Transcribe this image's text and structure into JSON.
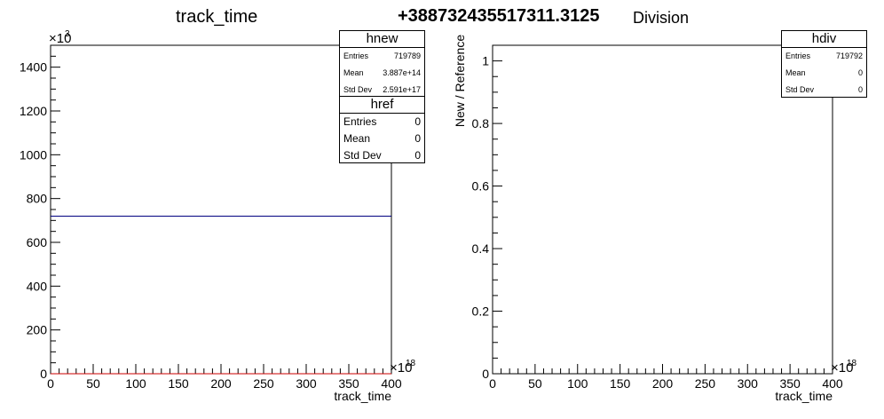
{
  "overlay_text": "+388732435517311.3125",
  "left_title": "track_time",
  "right_title": "Division",
  "stat_boxes": {
    "hnew": {
      "name": "hnew",
      "rows": [
        [
          "Entries",
          "719789"
        ],
        [
          "Mean",
          "3.887e+14"
        ],
        [
          "Std Dev",
          "2.591e+17"
        ]
      ]
    },
    "href": {
      "name": "href",
      "rows": [
        [
          "Entries",
          "0"
        ],
        [
          "Mean",
          "0"
        ],
        [
          "Std Dev",
          "0"
        ]
      ]
    },
    "hdiv": {
      "name": "hdiv",
      "rows": [
        [
          "Entries",
          "719792"
        ],
        [
          "Mean",
          "0"
        ],
        [
          "Std Dev",
          "0"
        ]
      ]
    }
  },
  "chart_data": [
    {
      "type": "line",
      "title": "track_time",
      "xlabel": "track_time",
      "ylabel": "",
      "x_exponent_label": "×10",
      "x_exponent": "18",
      "y_exponent_label": "×10",
      "y_exponent": "3",
      "xlim": [
        0,
        400
      ],
      "ylim": [
        0,
        1500
      ],
      "x_ticks": [
        "0",
        "50",
        "100",
        "150",
        "200",
        "250",
        "300",
        "350",
        "400"
      ],
      "y_ticks": [
        "0",
        "200",
        "400",
        "600",
        "800",
        "1000",
        "1200",
        "1400"
      ],
      "series": [
        {
          "name": "hnew",
          "color": "#000080",
          "x": [
            0,
            400
          ],
          "values": [
            719.789,
            719.789
          ]
        },
        {
          "name": "href",
          "color": "#cc0000",
          "x": [
            0,
            400
          ],
          "values": [
            0,
            0
          ]
        }
      ]
    },
    {
      "type": "line",
      "title": "Division",
      "xlabel": "track_time",
      "ylabel": "New / Reference",
      "x_exponent_label": "×10",
      "x_exponent": "18",
      "xlim": [
        0,
        400
      ],
      "ylim": [
        0,
        1.05
      ],
      "x_ticks": [
        "0",
        "50",
        "100",
        "150",
        "200",
        "250",
        "300",
        "350",
        "400"
      ],
      "y_ticks": [
        "0",
        "0.2",
        "0.4",
        "0.6",
        "0.8",
        "1"
      ],
      "series": [
        {
          "name": "hdiv",
          "color": "#000000",
          "x": [
            0,
            400
          ],
          "values": [
            0,
            0
          ]
        }
      ]
    }
  ]
}
